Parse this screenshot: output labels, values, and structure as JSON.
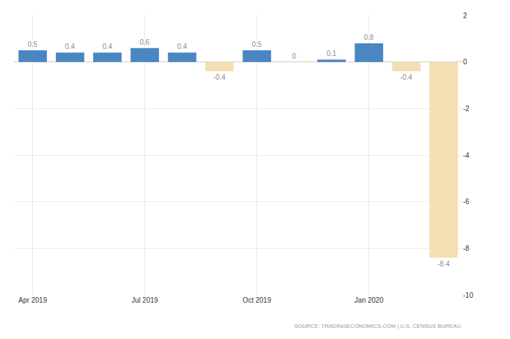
{
  "chart_data": {
    "type": "bar",
    "categories": [
      "Apr 2019",
      null,
      null,
      "Jul 2019",
      null,
      null,
      "Oct 2019",
      null,
      null,
      "Jan 2020",
      null,
      null
    ],
    "values": [
      0.5,
      0.4,
      0.4,
      0.6,
      0.4,
      -0.4,
      0.5,
      0,
      0.1,
      0.8,
      -0.4,
      -8.4
    ],
    "colors": [
      "#4a86c1",
      "#4a86c1",
      "#4a86c1",
      "#4a86c1",
      "#4a86c1",
      "#f4dfb4",
      "#4a86c1",
      "#4a86c1",
      "#4a86c1",
      "#4a86c1",
      "#f4dfb4",
      "#f4dfb4"
    ],
    "ylim": [
      -10,
      2
    ],
    "yticks": [
      -10,
      -8,
      -6,
      -4,
      -2,
      0,
      2
    ],
    "grid": true,
    "data_labels": true,
    "annotations": [
      "SOURCE: TRADINGECONOMICS.COM | U.S. CENSUS BUREAU"
    ]
  }
}
